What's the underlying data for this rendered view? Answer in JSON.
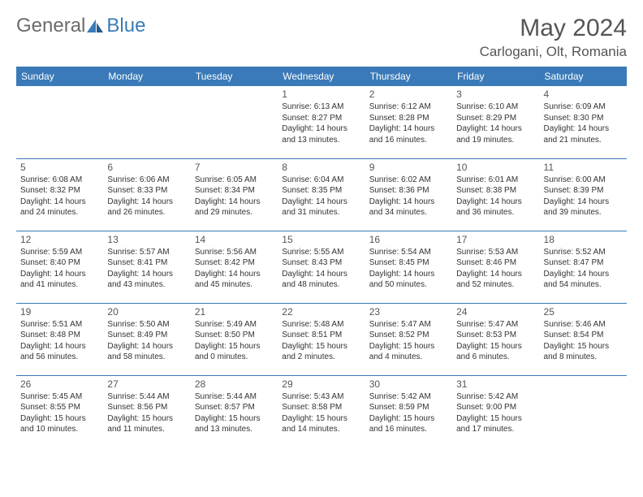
{
  "logo": {
    "general": "General",
    "blue": "Blue"
  },
  "title": "May 2024",
  "location": "Carlogani, Olt, Romania",
  "colors": {
    "header_bg": "#3a7ab8",
    "text": "#333333",
    "title_text": "#555555"
  },
  "day_headers": [
    "Sunday",
    "Monday",
    "Tuesday",
    "Wednesday",
    "Thursday",
    "Friday",
    "Saturday"
  ],
  "weeks": [
    [
      null,
      null,
      null,
      {
        "n": "1",
        "sr": "Sunrise: 6:13 AM",
        "ss": "Sunset: 8:27 PM",
        "d1": "Daylight: 14 hours",
        "d2": "and 13 minutes."
      },
      {
        "n": "2",
        "sr": "Sunrise: 6:12 AM",
        "ss": "Sunset: 8:28 PM",
        "d1": "Daylight: 14 hours",
        "d2": "and 16 minutes."
      },
      {
        "n": "3",
        "sr": "Sunrise: 6:10 AM",
        "ss": "Sunset: 8:29 PM",
        "d1": "Daylight: 14 hours",
        "d2": "and 19 minutes."
      },
      {
        "n": "4",
        "sr": "Sunrise: 6:09 AM",
        "ss": "Sunset: 8:30 PM",
        "d1": "Daylight: 14 hours",
        "d2": "and 21 minutes."
      }
    ],
    [
      {
        "n": "5",
        "sr": "Sunrise: 6:08 AM",
        "ss": "Sunset: 8:32 PM",
        "d1": "Daylight: 14 hours",
        "d2": "and 24 minutes."
      },
      {
        "n": "6",
        "sr": "Sunrise: 6:06 AM",
        "ss": "Sunset: 8:33 PM",
        "d1": "Daylight: 14 hours",
        "d2": "and 26 minutes."
      },
      {
        "n": "7",
        "sr": "Sunrise: 6:05 AM",
        "ss": "Sunset: 8:34 PM",
        "d1": "Daylight: 14 hours",
        "d2": "and 29 minutes."
      },
      {
        "n": "8",
        "sr": "Sunrise: 6:04 AM",
        "ss": "Sunset: 8:35 PM",
        "d1": "Daylight: 14 hours",
        "d2": "and 31 minutes."
      },
      {
        "n": "9",
        "sr": "Sunrise: 6:02 AM",
        "ss": "Sunset: 8:36 PM",
        "d1": "Daylight: 14 hours",
        "d2": "and 34 minutes."
      },
      {
        "n": "10",
        "sr": "Sunrise: 6:01 AM",
        "ss": "Sunset: 8:38 PM",
        "d1": "Daylight: 14 hours",
        "d2": "and 36 minutes."
      },
      {
        "n": "11",
        "sr": "Sunrise: 6:00 AM",
        "ss": "Sunset: 8:39 PM",
        "d1": "Daylight: 14 hours",
        "d2": "and 39 minutes."
      }
    ],
    [
      {
        "n": "12",
        "sr": "Sunrise: 5:59 AM",
        "ss": "Sunset: 8:40 PM",
        "d1": "Daylight: 14 hours",
        "d2": "and 41 minutes."
      },
      {
        "n": "13",
        "sr": "Sunrise: 5:57 AM",
        "ss": "Sunset: 8:41 PM",
        "d1": "Daylight: 14 hours",
        "d2": "and 43 minutes."
      },
      {
        "n": "14",
        "sr": "Sunrise: 5:56 AM",
        "ss": "Sunset: 8:42 PM",
        "d1": "Daylight: 14 hours",
        "d2": "and 45 minutes."
      },
      {
        "n": "15",
        "sr": "Sunrise: 5:55 AM",
        "ss": "Sunset: 8:43 PM",
        "d1": "Daylight: 14 hours",
        "d2": "and 48 minutes."
      },
      {
        "n": "16",
        "sr": "Sunrise: 5:54 AM",
        "ss": "Sunset: 8:45 PM",
        "d1": "Daylight: 14 hours",
        "d2": "and 50 minutes."
      },
      {
        "n": "17",
        "sr": "Sunrise: 5:53 AM",
        "ss": "Sunset: 8:46 PM",
        "d1": "Daylight: 14 hours",
        "d2": "and 52 minutes."
      },
      {
        "n": "18",
        "sr": "Sunrise: 5:52 AM",
        "ss": "Sunset: 8:47 PM",
        "d1": "Daylight: 14 hours",
        "d2": "and 54 minutes."
      }
    ],
    [
      {
        "n": "19",
        "sr": "Sunrise: 5:51 AM",
        "ss": "Sunset: 8:48 PM",
        "d1": "Daylight: 14 hours",
        "d2": "and 56 minutes."
      },
      {
        "n": "20",
        "sr": "Sunrise: 5:50 AM",
        "ss": "Sunset: 8:49 PM",
        "d1": "Daylight: 14 hours",
        "d2": "and 58 minutes."
      },
      {
        "n": "21",
        "sr": "Sunrise: 5:49 AM",
        "ss": "Sunset: 8:50 PM",
        "d1": "Daylight: 15 hours",
        "d2": "and 0 minutes."
      },
      {
        "n": "22",
        "sr": "Sunrise: 5:48 AM",
        "ss": "Sunset: 8:51 PM",
        "d1": "Daylight: 15 hours",
        "d2": "and 2 minutes."
      },
      {
        "n": "23",
        "sr": "Sunrise: 5:47 AM",
        "ss": "Sunset: 8:52 PM",
        "d1": "Daylight: 15 hours",
        "d2": "and 4 minutes."
      },
      {
        "n": "24",
        "sr": "Sunrise: 5:47 AM",
        "ss": "Sunset: 8:53 PM",
        "d1": "Daylight: 15 hours",
        "d2": "and 6 minutes."
      },
      {
        "n": "25",
        "sr": "Sunrise: 5:46 AM",
        "ss": "Sunset: 8:54 PM",
        "d1": "Daylight: 15 hours",
        "d2": "and 8 minutes."
      }
    ],
    [
      {
        "n": "26",
        "sr": "Sunrise: 5:45 AM",
        "ss": "Sunset: 8:55 PM",
        "d1": "Daylight: 15 hours",
        "d2": "and 10 minutes."
      },
      {
        "n": "27",
        "sr": "Sunrise: 5:44 AM",
        "ss": "Sunset: 8:56 PM",
        "d1": "Daylight: 15 hours",
        "d2": "and 11 minutes."
      },
      {
        "n": "28",
        "sr": "Sunrise: 5:44 AM",
        "ss": "Sunset: 8:57 PM",
        "d1": "Daylight: 15 hours",
        "d2": "and 13 minutes."
      },
      {
        "n": "29",
        "sr": "Sunrise: 5:43 AM",
        "ss": "Sunset: 8:58 PM",
        "d1": "Daylight: 15 hours",
        "d2": "and 14 minutes."
      },
      {
        "n": "30",
        "sr": "Sunrise: 5:42 AM",
        "ss": "Sunset: 8:59 PM",
        "d1": "Daylight: 15 hours",
        "d2": "and 16 minutes."
      },
      {
        "n": "31",
        "sr": "Sunrise: 5:42 AM",
        "ss": "Sunset: 9:00 PM",
        "d1": "Daylight: 15 hours",
        "d2": "and 17 minutes."
      },
      null
    ]
  ]
}
